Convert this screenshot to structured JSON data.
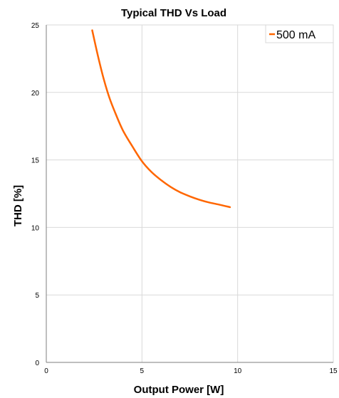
{
  "chart_data": {
    "type": "line",
    "title": "Typical THD Vs Load",
    "xlabel": "Output Power [W]",
    "ylabel": "THD [%]",
    "xlim": [
      0,
      15
    ],
    "ylim": [
      0,
      25
    ],
    "x_ticks": [
      "0",
      "5",
      "10",
      "15"
    ],
    "y_ticks": [
      "0",
      "5",
      "10",
      "15",
      "20",
      "25"
    ],
    "grid": true,
    "legend_position": "top-right",
    "series": [
      {
        "name": "500 mA",
        "color": "#ff6600",
        "x": [
          2.4,
          2.7,
          3.0,
          3.3,
          3.6,
          4.0,
          4.5,
          5.0,
          5.5,
          6.0,
          6.5,
          7.0,
          7.5,
          8.0,
          8.5,
          9.0,
          9.6
        ],
        "y": [
          24.6,
          22.7,
          21.0,
          19.6,
          18.5,
          17.2,
          16.0,
          14.9,
          14.1,
          13.5,
          13.0,
          12.6,
          12.3,
          12.05,
          11.85,
          11.7,
          11.5
        ]
      }
    ]
  }
}
